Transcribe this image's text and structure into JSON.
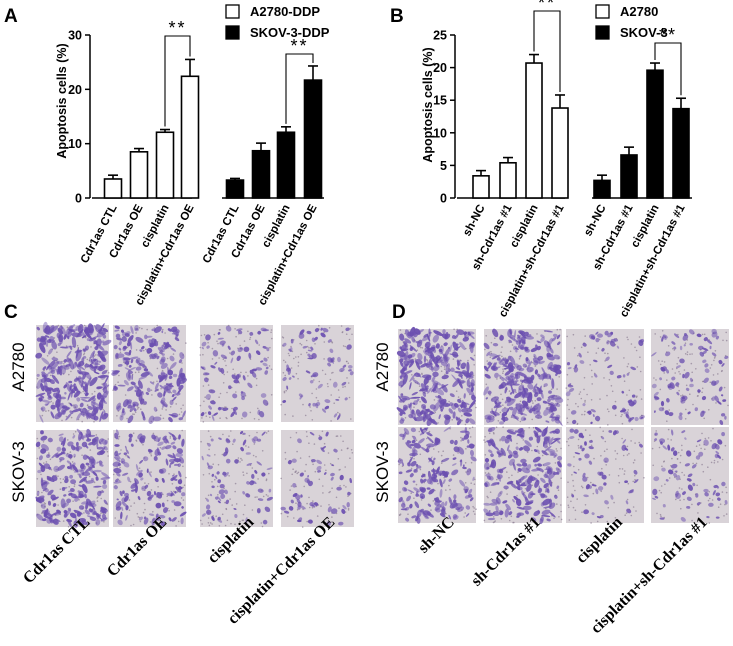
{
  "panels": {
    "A": "A",
    "B": "B",
    "C": "C",
    "D": "D"
  },
  "chart_data": [
    {
      "type": "bar",
      "panel": "A",
      "ylabel": "Apoptosis cells (%)",
      "ylim": [
        0,
        30
      ],
      "yticks": [
        "0",
        "10",
        "20",
        "30"
      ],
      "categories": [
        "Cdr1as CTL",
        "Cdr1as OE",
        "cisplatin",
        "cisplatin+Cdr1as OE"
      ],
      "significance": "**",
      "series": [
        {
          "name": "A2780-DDP",
          "color": "#ffffff",
          "values": [
            3.5,
            8.5,
            12.1,
            22.4
          ],
          "errors": [
            0.7,
            0.6,
            0.5,
            3.1
          ]
        },
        {
          "name": "SKOV-3-DDP",
          "color": "#000000",
          "values": [
            3.3,
            8.7,
            12.1,
            21.7
          ],
          "errors": [
            0.3,
            1.4,
            1.0,
            2.6
          ]
        }
      ]
    },
    {
      "type": "bar",
      "panel": "B",
      "ylabel": "Apoptosis cells (%)",
      "ylim": [
        0,
        25
      ],
      "yticks": [
        "0",
        "5",
        "10",
        "15",
        "20",
        "25"
      ],
      "categories": [
        "sh-NC",
        "sh-Cdr1as #1",
        "cisplatin",
        "cisplatin+sh-Cdr1as #1"
      ],
      "significance": "**",
      "series": [
        {
          "name": "A2780",
          "color": "#ffffff",
          "values": [
            3.4,
            5.4,
            20.7,
            13.8
          ],
          "errors": [
            0.8,
            0.8,
            1.3,
            2.0
          ]
        },
        {
          "name": "SKOV-3",
          "color": "#000000",
          "values": [
            2.7,
            6.6,
            19.6,
            13.7
          ],
          "errors": [
            0.8,
            1.2,
            1.1,
            1.6
          ]
        }
      ]
    }
  ],
  "micrographs": {
    "C": {
      "rows": [
        "A2780",
        "SKOV-3"
      ],
      "columns": [
        "Cdr1as CTL",
        "Cdr1as OE",
        "cisplatin",
        "cisplatin+Cdr1as OE"
      ],
      "density": [
        [
          0.95,
          0.6,
          0.22,
          0.16
        ],
        [
          0.7,
          0.45,
          0.18,
          0.12
        ]
      ]
    },
    "D": {
      "rows": [
        "A2780",
        "SKOV-3"
      ],
      "columns": [
        "sh-NC",
        "sh-Cdr1as #1",
        "cisplatin",
        "cisplatin+sh-Cdr1as #1"
      ],
      "density": [
        [
          0.9,
          0.85,
          0.16,
          0.25
        ],
        [
          0.55,
          0.65,
          0.12,
          0.16
        ]
      ]
    },
    "stain_color": "#6b4fb0",
    "background_color": "#d9d3d8"
  }
}
